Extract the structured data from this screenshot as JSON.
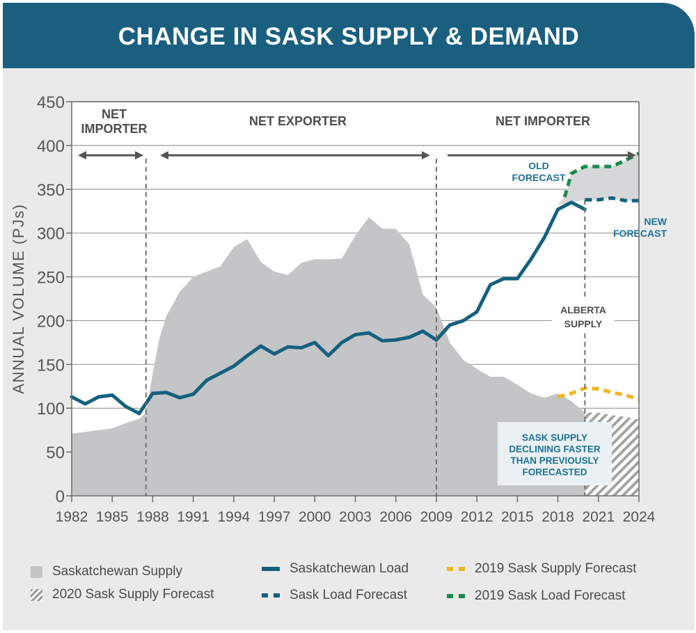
{
  "title": "CHANGE IN SASK SUPPLY & DEMAND",
  "colors": {
    "supply": "#c4c5c7",
    "load": "#14607f",
    "sask_supply_forecast_2019": "#f2b61a",
    "sask_load_forecast_2019": "#1b8a4e",
    "hatch": "#9a9a9a",
    "annotation_blue": "#1d7196",
    "grid": "#9a9a9a",
    "background": "#eaeaea",
    "banner": "#1a5f80"
  },
  "chart_data": {
    "type": "area+line",
    "ylabel": "ANNUAL VOLUME (PJs)",
    "xlabel": "",
    "ylim": [
      0,
      450
    ],
    "yticks": [
      0,
      50,
      100,
      150,
      200,
      250,
      300,
      350,
      400,
      450
    ],
    "xlim": [
      1982,
      2024
    ],
    "xticks": [
      1982,
      1985,
      1988,
      1991,
      1994,
      1997,
      2000,
      2003,
      2006,
      2009,
      2012,
      2015,
      2018,
      2021,
      2024
    ],
    "series": [
      {
        "name": "Saskatchewan Supply",
        "kind": "area",
        "x": [
          1982,
          1983,
          1984,
          1985,
          1986,
          1987,
          1987.5,
          1988,
          1988.5,
          1989,
          1990,
          1991,
          1992,
          1993,
          1994,
          1995,
          1996,
          1997,
          1998,
          1999,
          2000,
          2001,
          2002,
          2003,
          2004,
          2005,
          2006,
          2007,
          2008,
          2009,
          2010,
          2011,
          2012,
          2013,
          2014,
          2015,
          2016,
          2017,
          2018
        ],
        "values": [
          71,
          73,
          75,
          77,
          83,
          88,
          95,
          140,
          180,
          205,
          233,
          250,
          256,
          262,
          284,
          293,
          267,
          256,
          252,
          266,
          270,
          270,
          271,
          297,
          318,
          305,
          305,
          287,
          230,
          215,
          175,
          155,
          145,
          136,
          136,
          127,
          117,
          112,
          117
        ]
      },
      {
        "name": "Saskatchewan Load",
        "kind": "line",
        "x": [
          1982,
          1983,
          1984,
          1985,
          1986,
          1987,
          1988,
          1989,
          1990,
          1991,
          1992,
          1993,
          1994,
          1995,
          1996,
          1997,
          1998,
          1999,
          2000,
          2001,
          2002,
          2003,
          2004,
          2005,
          2006,
          2007,
          2008,
          2009,
          2010,
          2011,
          2012,
          2013,
          2014,
          2015,
          2016,
          2017,
          2018,
          2019,
          2020
        ],
        "values": [
          113,
          105,
          113,
          115,
          102,
          94,
          117,
          118,
          112,
          116,
          132,
          140,
          148,
          160,
          171,
          162,
          170,
          169,
          175,
          160,
          175,
          184,
          186,
          177,
          178,
          181,
          188,
          178,
          195,
          200,
          210,
          241,
          248,
          248,
          270,
          295,
          327,
          335,
          327
        ]
      },
      {
        "name": "Sask Load Forecast",
        "kind": "dashed-line",
        "x": [
          2020,
          2021,
          2022,
          2023,
          2024
        ],
        "values": [
          338,
          338,
          340,
          337,
          337
        ]
      },
      {
        "name": "2019 Sask Supply Forecast",
        "kind": "dashed-line",
        "x": [
          2018,
          2019,
          2020,
          2021,
          2022,
          2023,
          2024
        ],
        "values": [
          113,
          117,
          123,
          122,
          118,
          115,
          110
        ]
      },
      {
        "name": "2019 Sask Load Forecast",
        "kind": "dashed-line",
        "x": [
          2018.5,
          2019,
          2020,
          2021,
          2022,
          2023,
          2024
        ],
        "values": [
          341,
          368,
          376,
          376,
          376,
          383,
          391
        ]
      },
      {
        "name": "2020 Sask Supply Forecast",
        "kind": "hatched-area",
        "x": [
          2020,
          2021,
          2022,
          2023,
          2024
        ],
        "values": [
          95,
          95,
          92,
          90,
          87
        ]
      }
    ],
    "regions": [
      {
        "label_lines": [
          "NET",
          "IMPORTER"
        ],
        "x_start": 1982,
        "x_end": 1987.5
      },
      {
        "label_lines": [
          "NET EXPORTER"
        ],
        "x_start": 1987.5,
        "x_end": 2009
      },
      {
        "label_lines": [
          "NET IMPORTER"
        ],
        "x_start": 2009,
        "x_end": 2024
      }
    ],
    "dividers": [
      1987.5,
      2009,
      2020
    ],
    "annotations": [
      {
        "lines": [
          "OLD",
          "FORECAST"
        ],
        "style": "blue"
      },
      {
        "lines": [
          "NEW",
          "FORECAST"
        ],
        "style": "blue"
      },
      {
        "lines": [
          "ALBERTA",
          "SUPPLY"
        ],
        "style": "grey"
      },
      {
        "lines": [
          "SASK SUPPLY",
          "DECLINING FASTER",
          "THAN PREVIOUSLY",
          "FORECASTED"
        ],
        "style": "blue-box"
      }
    ]
  },
  "legend": [
    {
      "label": "Saskatchewan Supply",
      "swatch": "solid-grey"
    },
    {
      "label": "2020 Sask Supply Forecast",
      "swatch": "hatched"
    },
    {
      "label": "Saskatchewan Load",
      "swatch": "solid-line-blue"
    },
    {
      "label": "Sask Load Forecast",
      "swatch": "dashed-blue"
    },
    {
      "label": "2019 Sask Supply Forecast",
      "swatch": "dashed-yellow"
    },
    {
      "label": "2019 Sask Load Forecast",
      "swatch": "dashed-green"
    }
  ]
}
